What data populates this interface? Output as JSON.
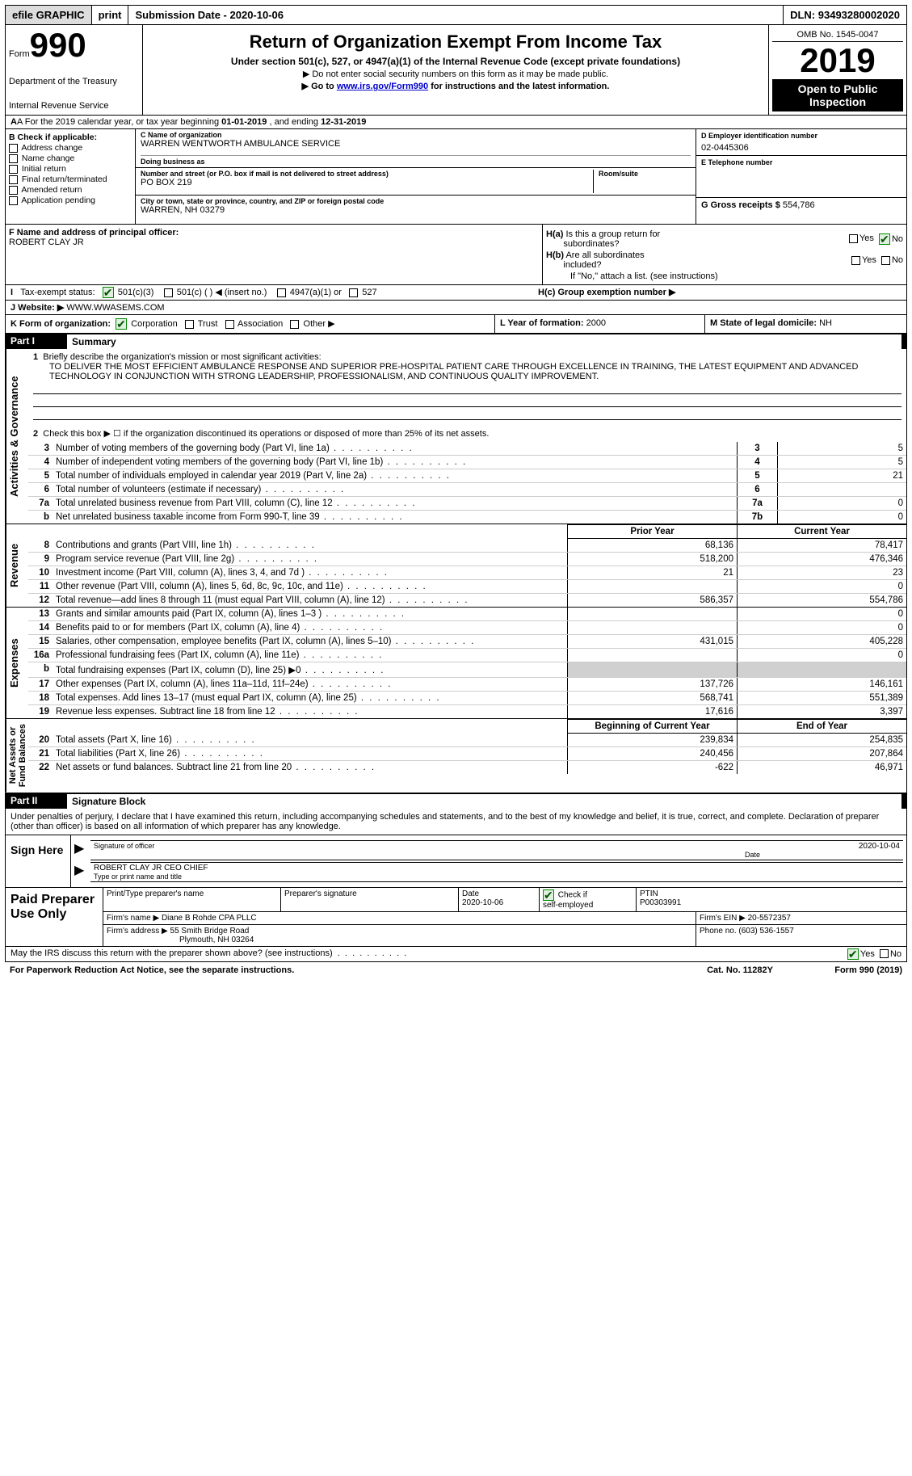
{
  "top": {
    "efile": "efile GRAPHIC",
    "print": "print",
    "sub_label": "Submission Date -",
    "sub_date": "2020-10-06",
    "dln_label": "DLN:",
    "dln": "93493280002020"
  },
  "header": {
    "form_label": "Form",
    "form_num": "990",
    "dept1": "Department of the Treasury",
    "dept2": "Internal Revenue Service",
    "title": "Return of Organization Exempt From Income Tax",
    "sub": "Under section 501(c), 527, or 4947(a)(1) of the Internal Revenue Code (except private foundations)",
    "note1": "▶ Do not enter social security numbers on this form as it may be made public.",
    "note2_pre": "▶ Go to ",
    "note2_link": "www.irs.gov/Form990",
    "note2_post": " for instructions and the latest information.",
    "omb": "OMB No. 1545-0047",
    "year": "2019",
    "open1": "Open to Public",
    "open2": "Inspection"
  },
  "row_a": {
    "text_pre": "A For the 2019 calendar year, or tax year beginning ",
    "begin": "01-01-2019",
    "mid": "    , and ending ",
    "end": "12-31-2019"
  },
  "section_b": {
    "heading": "B Check if applicable:",
    "items": [
      "Address change",
      "Name change",
      "Initial return",
      "Final return/terminated",
      "Amended return",
      "Application pending"
    ]
  },
  "section_c": {
    "name_lbl": "C Name of organization",
    "name": "WARREN WENTWORTH AMBULANCE SERVICE",
    "dba_lbl": "Doing business as",
    "dba": "",
    "street_lbl": "Number and street (or P.O. box if mail is not delivered to street address)",
    "street": "PO BOX 219",
    "room_lbl": "Room/suite",
    "room": "",
    "city_lbl": "City or town, state or province, country, and ZIP or foreign postal code",
    "city": "WARREN, NH  03279"
  },
  "section_d": {
    "ein_lbl": "D Employer identification number",
    "ein": "02-0445306",
    "phone_lbl": "E Telephone number",
    "phone": "",
    "gross_lbl": "G Gross receipts $",
    "gross": "554,786"
  },
  "section_f": {
    "lbl": "F Name and address of principal officer:",
    "name": "ROBERT CLAY JR"
  },
  "section_h": {
    "ha_lbl": "H(a)  Is this a group return for subordinates?",
    "hb_lbl": "H(b)  Are all subordinates included?",
    "hb_note": "If \"No,\" attach a list. (see instructions)",
    "hc_lbl": "H(c)  Group exemption number ▶"
  },
  "section_i": {
    "lbl": "I    Tax-exempt status:",
    "opts": [
      "501(c)(3)",
      "501(c) (  ) ◀ (insert no.)",
      "4947(a)(1) or",
      "527"
    ]
  },
  "section_j": {
    "lbl": "J    Website: ▶",
    "val": "WWW.WWASEMS.COM"
  },
  "section_k": {
    "lbl": "K Form of organization:",
    "opts": [
      "Corporation",
      "Trust",
      "Association",
      "Other ▶"
    ]
  },
  "section_l": {
    "lbl": "L Year of formation:",
    "val": "2000"
  },
  "section_m": {
    "lbl": "M State of legal domicile:",
    "val": "NH"
  },
  "part1": {
    "num": "Part I",
    "title": "Summary",
    "line1_lbl": "Briefly describe the organization's mission or most significant activities:",
    "mission": "TO DELIVER THE MOST EFFICIENT AMBULANCE RESPONSE AND SUPERIOR PRE-HOSPITAL PATIENT CARE THROUGH EXCELLENCE IN TRAINING, THE LATEST EQUIPMENT AND ADVANCED TECHNOLOGY IN CONJUNCTION WITH STRONG LEADERSHIP, PROFESSIONALISM, AND CONTINUOUS QUALITY IMPROVEMENT.",
    "line2": "Check this box ▶ ☐  if the organization discontinued its operations or disposed of more than 25% of its net assets.",
    "rows_gov": [
      {
        "n": "3",
        "d": "Number of voting members of the governing body (Part VI, line 1a)",
        "box": "3",
        "v": "5"
      },
      {
        "n": "4",
        "d": "Number of independent voting members of the governing body (Part VI, line 1b)",
        "box": "4",
        "v": "5"
      },
      {
        "n": "5",
        "d": "Total number of individuals employed in calendar year 2019 (Part V, line 2a)",
        "box": "5",
        "v": "21"
      },
      {
        "n": "6",
        "d": "Total number of volunteers (estimate if necessary)",
        "box": "6",
        "v": ""
      },
      {
        "n": "7a",
        "d": "Total unrelated business revenue from Part VIII, column (C), line 12",
        "box": "7a",
        "v": "0"
      },
      {
        "n": "b",
        "d": "Net unrelated business taxable income from Form 990-T, line 39",
        "box": "7b",
        "v": "0"
      }
    ],
    "col_prior": "Prior Year",
    "col_curr": "Current Year",
    "rows_rev": [
      {
        "n": "8",
        "d": "Contributions and grants (Part VIII, line 1h)",
        "p": "68,136",
        "c": "78,417"
      },
      {
        "n": "9",
        "d": "Program service revenue (Part VIII, line 2g)",
        "p": "518,200",
        "c": "476,346"
      },
      {
        "n": "10",
        "d": "Investment income (Part VIII, column (A), lines 3, 4, and 7d )",
        "p": "21",
        "c": "23"
      },
      {
        "n": "11",
        "d": "Other revenue (Part VIII, column (A), lines 5, 6d, 8c, 9c, 10c, and 11e)",
        "p": "",
        "c": "0"
      },
      {
        "n": "12",
        "d": "Total revenue—add lines 8 through 11 (must equal Part VIII, column (A), line 12)",
        "p": "586,357",
        "c": "554,786"
      }
    ],
    "rows_exp": [
      {
        "n": "13",
        "d": "Grants and similar amounts paid (Part IX, column (A), lines 1–3 )",
        "p": "",
        "c": "0"
      },
      {
        "n": "14",
        "d": "Benefits paid to or for members (Part IX, column (A), line 4)",
        "p": "",
        "c": "0"
      },
      {
        "n": "15",
        "d": "Salaries, other compensation, employee benefits (Part IX, column (A), lines 5–10)",
        "p": "431,015",
        "c": "405,228"
      },
      {
        "n": "16a",
        "d": "Professional fundraising fees (Part IX, column (A), line 11e)",
        "p": "",
        "c": "0"
      },
      {
        "n": "b",
        "d": "Total fundraising expenses (Part IX, column (D), line 25) ▶0",
        "p": "GRAY",
        "c": "GRAY"
      },
      {
        "n": "17",
        "d": "Other expenses (Part IX, column (A), lines 11a–11d, 11f–24e)",
        "p": "137,726",
        "c": "146,161"
      },
      {
        "n": "18",
        "d": "Total expenses. Add lines 13–17 (must equal Part IX, column (A), line 25)",
        "p": "568,741",
        "c": "551,389"
      },
      {
        "n": "19",
        "d": "Revenue less expenses. Subtract line 18 from line 12",
        "p": "17,616",
        "c": "3,397"
      }
    ],
    "col_begin": "Beginning of Current Year",
    "col_end": "End of Year",
    "rows_net": [
      {
        "n": "20",
        "d": "Total assets (Part X, line 16)",
        "p": "239,834",
        "c": "254,835"
      },
      {
        "n": "21",
        "d": "Total liabilities (Part X, line 26)",
        "p": "240,456",
        "c": "207,864"
      },
      {
        "n": "22",
        "d": "Net assets or fund balances. Subtract line 21 from line 20",
        "p": "-622",
        "c": "46,971"
      }
    ]
  },
  "part2": {
    "num": "Part II",
    "title": "Signature Block",
    "perjury": "Under penalties of perjury, I declare that I have examined this return, including accompanying schedules and statements, and to the best of my knowledge and belief, it is true, correct, and complete. Declaration of preparer (other than officer) is based on all information of which preparer has any knowledge.",
    "sign_here": "Sign Here",
    "sig_officer": "Signature of officer",
    "sig_date": "2020-10-04",
    "date_lbl": "Date",
    "officer_name": "ROBERT CLAY JR CEO CHIEF",
    "type_name": "Type or print name and title",
    "paid_prep": "Paid Preparer Use Only",
    "prep_name_lbl": "Print/Type preparer's name",
    "prep_sig_lbl": "Preparer's signature",
    "prep_date_lbl": "Date",
    "prep_date": "2020-10-06",
    "check_self": "Check ☑ if self-employed",
    "ptin_lbl": "PTIN",
    "ptin": "P00303991",
    "firm_name_lbl": "Firm's name    ▶",
    "firm_name": "Diane B Rohde CPA PLLC",
    "firm_ein_lbl": "Firm's EIN ▶",
    "firm_ein": "20-5572357",
    "firm_addr_lbl": "Firm's address ▶",
    "firm_addr1": "55 Smith Bridge Road",
    "firm_addr2": "Plymouth, NH  03264",
    "phone_lbl": "Phone no.",
    "phone": "(603) 536-1557",
    "discuss": "May the IRS discuss this return with the preparer shown above? (see instructions)"
  },
  "footer": {
    "pra": "For Paperwork Reduction Act Notice, see the separate instructions.",
    "cat": "Cat. No. 11282Y",
    "form": "Form 990 (2019)"
  }
}
